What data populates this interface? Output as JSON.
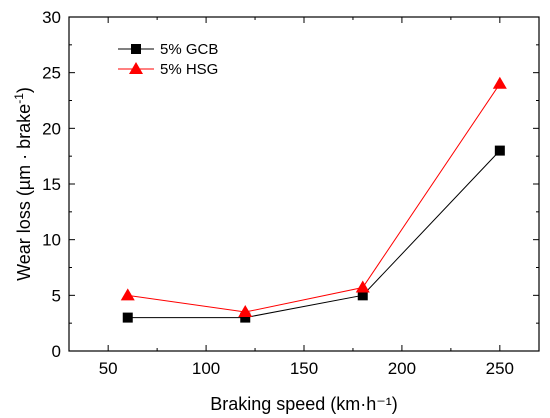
{
  "chart_data": {
    "type": "line",
    "xlabel": "Braking speed (km·h⁻¹)",
    "ylabel_main": "Wear loss (µm · brake",
    "ylabel_sup": "-1",
    "ylabel_close": ")",
    "xlim": [
      30,
      270
    ],
    "ylim": [
      0,
      30
    ],
    "xticks": [
      50,
      100,
      150,
      200,
      250
    ],
    "yticks": [
      0,
      5,
      10,
      15,
      20,
      25,
      30
    ],
    "grid": false,
    "legend_position": "top-left",
    "series": [
      {
        "name": "5% GCB",
        "color": "#000000",
        "marker": "square",
        "points": [
          [
            60,
            3
          ],
          [
            120,
            3
          ],
          [
            180,
            5
          ],
          [
            250,
            18
          ]
        ]
      },
      {
        "name": "5% HSG",
        "color": "#ff0000",
        "marker": "triangle",
        "points": [
          [
            60,
            5
          ],
          [
            120,
            3.5
          ],
          [
            180,
            5.7
          ],
          [
            250,
            24
          ]
        ]
      }
    ]
  }
}
